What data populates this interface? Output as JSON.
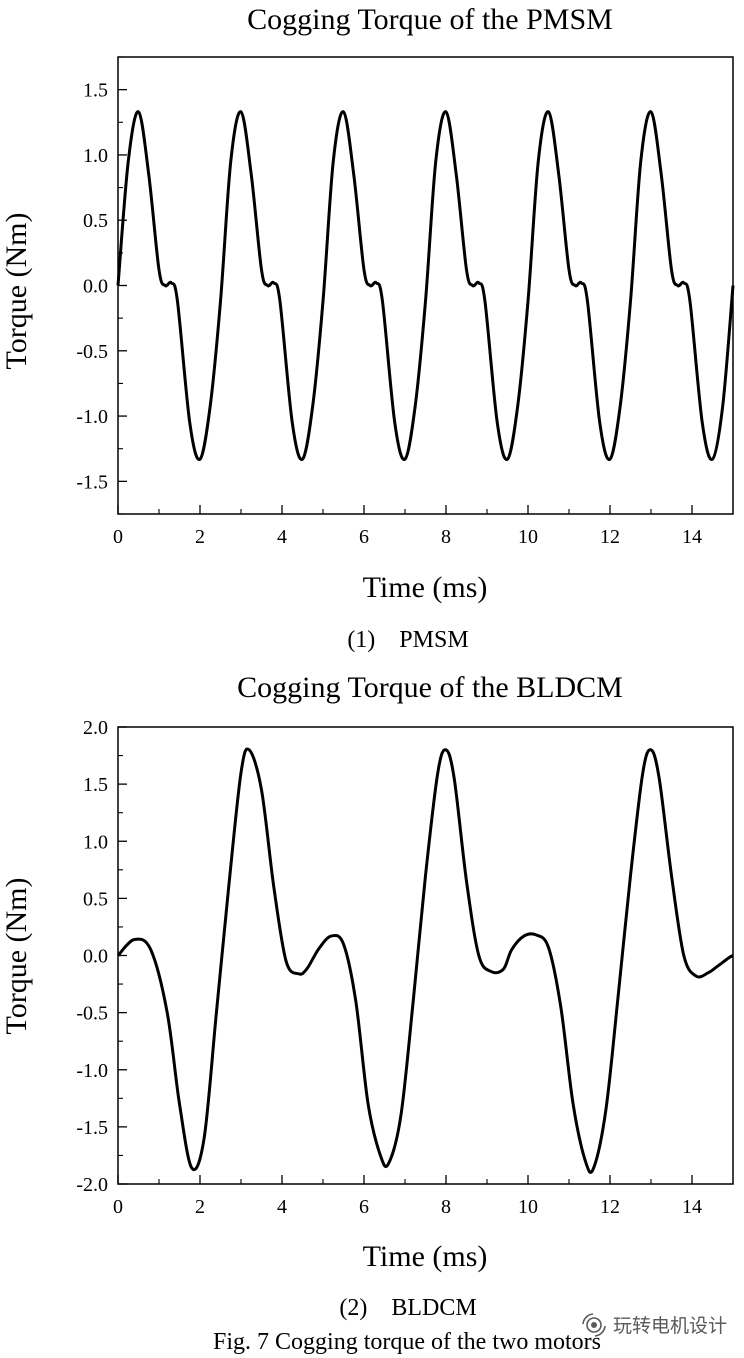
{
  "figure": {
    "caption": "Fig. 7 Cogging torque of the two motors",
    "watermark_text": "玩转电机设计",
    "watermark_icon": "wechat-channel-icon"
  },
  "chart_data": [
    {
      "type": "line",
      "title": "Cogging Torque of the PMSM",
      "xlabel": "Time (ms)",
      "ylabel": "Torque (Nm)",
      "xlim": [
        0,
        15
      ],
      "ylim": [
        -1.75,
        1.75
      ],
      "x_ticks": [
        0,
        2,
        4,
        6,
        8,
        10,
        12,
        14
      ],
      "x_tick_labels": [
        "0",
        "2",
        "4",
        "6",
        "8",
        "10",
        "12",
        "14"
      ],
      "y_ticks": [
        -1.5,
        -1.0,
        -0.5,
        0.0,
        0.5,
        1.0,
        1.5
      ],
      "y_tick_labels": [
        "-1.5",
        "-1.0",
        "-0.5",
        "0.0",
        "0.5",
        "1.0",
        "1.5"
      ],
      "grid": false,
      "sublabel": "(1)    PMSM",
      "series": [
        {
          "color": "#000000",
          "x": [
            0,
            0.25,
            0.5,
            0.75,
            1.0,
            1.15,
            1.3,
            1.45,
            1.75,
            2.0,
            2.25,
            2.5,
            2.75,
            3.0,
            3.25,
            3.5,
            3.65,
            3.8,
            3.95,
            4.25,
            4.5,
            4.75,
            5.0,
            5.25,
            5.5,
            5.75,
            6.0,
            6.15,
            6.3,
            6.45,
            6.75,
            7.0,
            7.25,
            7.5,
            7.75,
            8.0,
            8.25,
            8.5,
            8.65,
            8.8,
            8.95,
            9.25,
            9.5,
            9.75,
            10.0,
            10.25,
            10.5,
            10.75,
            11.0,
            11.15,
            11.3,
            11.45,
            11.75,
            12.0,
            12.25,
            12.5,
            12.75,
            13.0,
            13.25,
            13.5,
            13.65,
            13.8,
            13.95,
            14.25,
            14.5,
            14.75,
            15.0
          ],
          "y": [
            0.0,
            0.95,
            1.33,
            0.85,
            0.12,
            0.0,
            0.02,
            -0.12,
            -1.05,
            -1.33,
            -0.92,
            -0.12,
            0.95,
            1.33,
            0.85,
            0.12,
            0.0,
            0.02,
            -0.12,
            -1.05,
            -1.33,
            -0.92,
            -0.12,
            0.95,
            1.33,
            0.85,
            0.12,
            0.0,
            0.02,
            -0.12,
            -1.05,
            -1.33,
            -0.92,
            -0.12,
            0.95,
            1.33,
            0.85,
            0.12,
            0.0,
            0.02,
            -0.12,
            -1.05,
            -1.33,
            -0.92,
            -0.12,
            0.95,
            1.33,
            0.85,
            0.12,
            0.0,
            0.02,
            -0.12,
            -1.05,
            -1.33,
            -0.92,
            -0.12,
            0.95,
            1.33,
            0.85,
            0.12,
            0.0,
            0.02,
            -0.12,
            -1.05,
            -1.33,
            -0.92,
            0.0
          ]
        }
      ]
    },
    {
      "type": "line",
      "title": "Cogging Torque of the BLDCM",
      "xlabel": "Time (ms)",
      "ylabel": "Torque (Nm)",
      "xlim": [
        0,
        15
      ],
      "ylim": [
        -2.0,
        2.0
      ],
      "x_ticks": [
        0,
        2,
        4,
        6,
        8,
        10,
        12,
        14
      ],
      "x_tick_labels": [
        "0",
        "2",
        "4",
        "6",
        "8",
        "10",
        "12",
        "14"
      ],
      "y_ticks": [
        -2.0,
        -1.5,
        -1.0,
        -0.5,
        0.0,
        0.5,
        1.0,
        1.5,
        2.0
      ],
      "y_tick_labels": [
        "-2.0",
        "-1.5",
        "-1.0",
        "-0.5",
        "0.0",
        "0.5",
        "1.0",
        "1.5",
        "2.0"
      ],
      "grid": false,
      "sublabel": "(2)    BLDCM",
      "series": [
        {
          "color": "#000000",
          "x": [
            0,
            0.4,
            0.8,
            1.2,
            1.5,
            1.8,
            2.1,
            2.4,
            2.7,
            3.0,
            3.2,
            3.5,
            3.8,
            4.1,
            4.4,
            4.6,
            4.9,
            5.2,
            5.5,
            5.8,
            6.1,
            6.4,
            6.6,
            6.9,
            7.2,
            7.5,
            7.8,
            8.0,
            8.2,
            8.5,
            8.8,
            9.1,
            9.4,
            9.6,
            9.9,
            10.2,
            10.5,
            10.8,
            11.1,
            11.4,
            11.6,
            11.9,
            12.2,
            12.5,
            12.8,
            13.0,
            13.2,
            13.5,
            13.8,
            14.1,
            14.4,
            14.6,
            14.9,
            15.0
          ],
          "y": [
            0.0,
            0.14,
            0.05,
            -0.5,
            -1.3,
            -1.86,
            -1.6,
            -0.5,
            0.6,
            1.6,
            1.8,
            1.45,
            0.6,
            -0.05,
            -0.16,
            -0.12,
            0.06,
            0.17,
            0.1,
            -0.4,
            -1.3,
            -1.75,
            -1.82,
            -1.4,
            -0.4,
            0.7,
            1.6,
            1.8,
            1.55,
            0.65,
            0.0,
            -0.14,
            -0.12,
            0.05,
            0.17,
            0.18,
            0.07,
            -0.45,
            -1.3,
            -1.8,
            -1.86,
            -1.35,
            -0.35,
            0.7,
            1.6,
            1.8,
            1.55,
            0.7,
            0.0,
            -0.18,
            -0.15,
            -0.1,
            -0.02,
            0.0
          ]
        }
      ]
    }
  ]
}
